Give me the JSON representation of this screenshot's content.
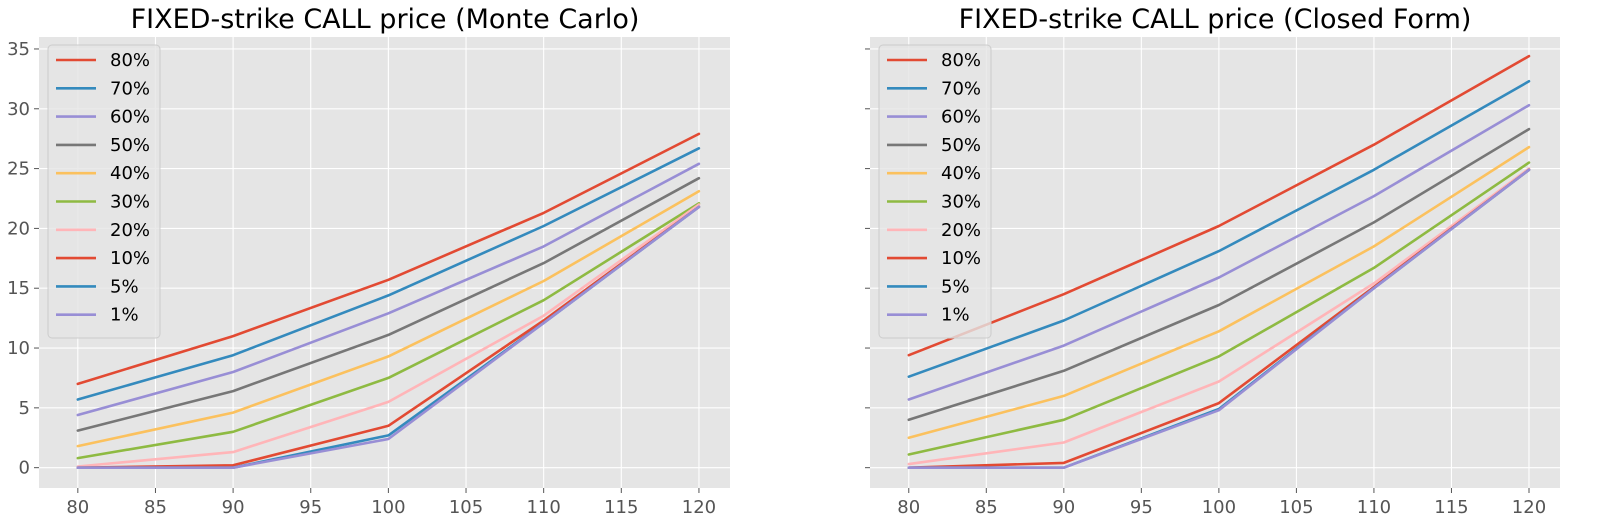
{
  "colors": {
    "panel_bg": "#E5E5E5",
    "grid": "#FFFFFF",
    "tick": "#555555",
    "text": "#000000"
  },
  "chart_data": [
    {
      "type": "line",
      "title": "FIXED-strike CALL price (Monte Carlo)",
      "xlabel": "",
      "ylabel": "",
      "x": [
        80,
        90,
        100,
        110,
        120
      ],
      "xlim": [
        77.5,
        122
      ],
      "ylim": [
        -1.7,
        36
      ],
      "xticks": [
        80,
        85,
        90,
        95,
        100,
        105,
        110,
        115,
        120
      ],
      "yticks": [
        0,
        5,
        10,
        15,
        20,
        25,
        30,
        35
      ],
      "grid": true,
      "legend_position": "upper-left",
      "series": [
        {
          "name": "80%",
          "color": "#E24A33",
          "values": [
            7.0,
            11.0,
            15.7,
            21.3,
            27.9
          ]
        },
        {
          "name": "70%",
          "color": "#348ABD",
          "values": [
            5.7,
            9.4,
            14.4,
            20.2,
            26.7
          ]
        },
        {
          "name": "60%",
          "color": "#988ED5",
          "values": [
            4.4,
            8.0,
            12.9,
            18.5,
            25.4
          ]
        },
        {
          "name": "50%",
          "color": "#777777",
          "values": [
            3.1,
            6.4,
            11.1,
            17.1,
            24.2
          ]
        },
        {
          "name": "40%",
          "color": "#FBC15E",
          "values": [
            1.8,
            4.6,
            9.3,
            15.6,
            23.1
          ]
        },
        {
          "name": "30%",
          "color": "#8EBA42",
          "values": [
            0.8,
            3.0,
            7.5,
            14.0,
            22.1
          ]
        },
        {
          "name": "20%",
          "color": "#FFB5B8",
          "values": [
            0.1,
            1.3,
            5.5,
            12.7,
            22.0
          ]
        },
        {
          "name": "10%",
          "color": "#E24A33",
          "values": [
            0.0,
            0.2,
            3.5,
            12.3,
            21.8
          ]
        },
        {
          "name": "5%",
          "color": "#348ABD",
          "values": [
            0.0,
            0.0,
            2.7,
            12.1,
            21.8
          ]
        },
        {
          "name": "1%",
          "color": "#988ED5",
          "values": [
            0.0,
            0.0,
            2.4,
            12.1,
            21.8
          ]
        }
      ]
    },
    {
      "type": "line",
      "title": "FIXED-strike CALL price (Closed Form)",
      "xlabel": "",
      "ylabel": "",
      "x": [
        80,
        90,
        100,
        110,
        120
      ],
      "xlim": [
        77.5,
        122
      ],
      "ylim": [
        -1.7,
        36
      ],
      "xticks": [
        80,
        85,
        90,
        95,
        100,
        105,
        110,
        115,
        120
      ],
      "yticks": [
        0,
        5,
        10,
        15,
        20,
        25,
        30,
        35
      ],
      "grid": true,
      "legend_position": "upper-left",
      "series": [
        {
          "name": "80%",
          "color": "#E24A33",
          "values": [
            9.4,
            14.5,
            20.2,
            27.0,
            34.4
          ]
        },
        {
          "name": "70%",
          "color": "#348ABD",
          "values": [
            7.6,
            12.3,
            18.1,
            24.9,
            32.3
          ]
        },
        {
          "name": "60%",
          "color": "#988ED5",
          "values": [
            5.7,
            10.2,
            15.9,
            22.7,
            30.3
          ]
        },
        {
          "name": "50%",
          "color": "#777777",
          "values": [
            4.0,
            8.1,
            13.6,
            20.5,
            28.3
          ]
        },
        {
          "name": "40%",
          "color": "#FBC15E",
          "values": [
            2.5,
            6.0,
            11.4,
            18.5,
            26.8
          ]
        },
        {
          "name": "30%",
          "color": "#8EBA42",
          "values": [
            1.1,
            4.0,
            9.3,
            16.7,
            25.5
          ]
        },
        {
          "name": "20%",
          "color": "#FFB5B8",
          "values": [
            0.3,
            2.1,
            7.2,
            15.4,
            25.0
          ]
        },
        {
          "name": "10%",
          "color": "#E24A33",
          "values": [
            0.0,
            0.4,
            5.4,
            15.1,
            24.9
          ]
        },
        {
          "name": "5%",
          "color": "#348ABD",
          "values": [
            0.0,
            0.0,
            4.9,
            15.0,
            24.9
          ]
        },
        {
          "name": "1%",
          "color": "#988ED5",
          "values": [
            0.0,
            0.0,
            4.8,
            15.0,
            24.9
          ]
        }
      ]
    }
  ]
}
